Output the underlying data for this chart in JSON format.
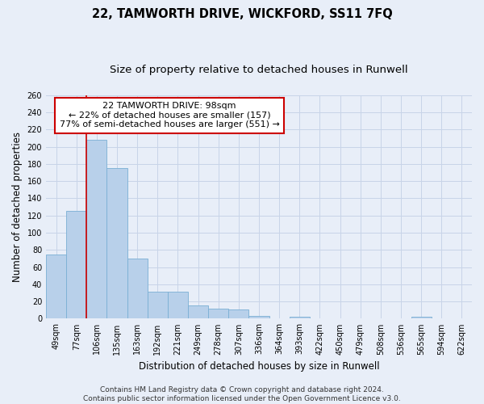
{
  "title": "22, TAMWORTH DRIVE, WICKFORD, SS11 7FQ",
  "subtitle": "Size of property relative to detached houses in Runwell",
  "xlabel": "Distribution of detached houses by size in Runwell",
  "ylabel": "Number of detached properties",
  "categories": [
    "49sqm",
    "77sqm",
    "106sqm",
    "135sqm",
    "163sqm",
    "192sqm",
    "221sqm",
    "249sqm",
    "278sqm",
    "307sqm",
    "336sqm",
    "364sqm",
    "393sqm",
    "422sqm",
    "450sqm",
    "479sqm",
    "508sqm",
    "536sqm",
    "565sqm",
    "594sqm",
    "622sqm"
  ],
  "values": [
    75,
    125,
    208,
    175,
    70,
    31,
    31,
    15,
    12,
    11,
    3,
    0,
    2,
    0,
    0,
    0,
    0,
    0,
    2,
    0,
    0
  ],
  "bar_color": "#b8d0ea",
  "bar_edge_color": "#7aafd4",
  "grid_color": "#c8d4e8",
  "background_color": "#e8eef8",
  "vline_x": 1.5,
  "vline_color": "#cc0000",
  "annotation_text": "22 TAMWORTH DRIVE: 98sqm\n← 22% of detached houses are smaller (157)\n77% of semi-detached houses are larger (551) →",
  "annotation_box_color": "#ffffff",
  "annotation_box_edge": "#cc0000",
  "ylim": [
    0,
    260
  ],
  "yticks": [
    0,
    20,
    40,
    60,
    80,
    100,
    120,
    140,
    160,
    180,
    200,
    220,
    240,
    260
  ],
  "footnote": "Contains HM Land Registry data © Crown copyright and database right 2024.\nContains public sector information licensed under the Open Government Licence v3.0.",
  "title_fontsize": 10.5,
  "subtitle_fontsize": 9.5,
  "tick_fontsize": 7,
  "ylabel_fontsize": 8.5,
  "xlabel_fontsize": 8.5,
  "annotation_fontsize": 8,
  "footnote_fontsize": 6.5
}
